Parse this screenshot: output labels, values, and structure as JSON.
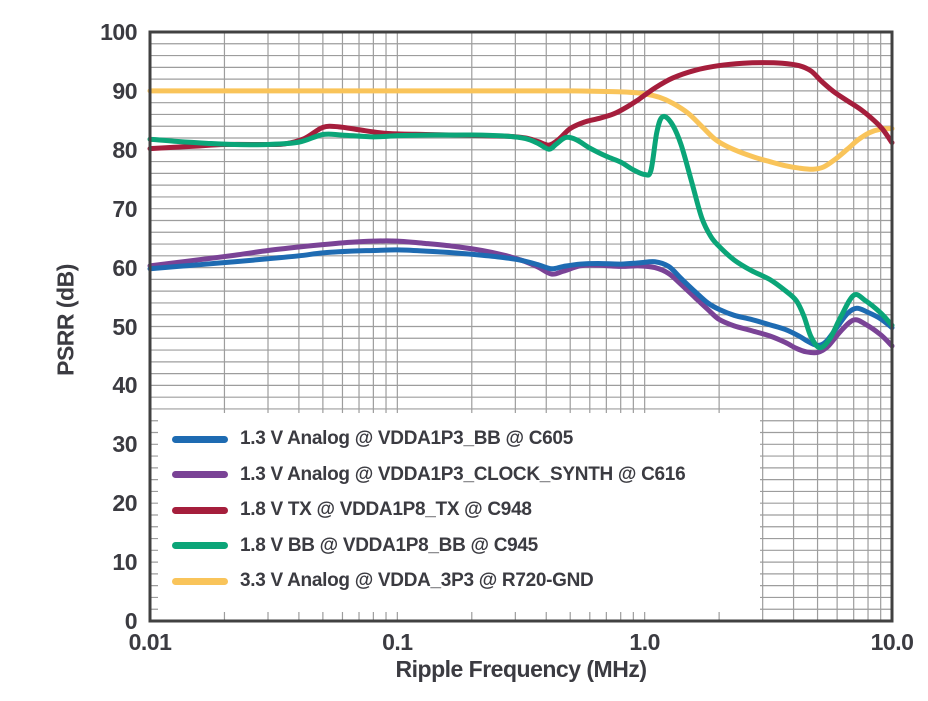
{
  "theme": {
    "text_color": "#3B3B41",
    "grid_color": "#9D9D9D",
    "axis_color": "#414141",
    "background": "#FFFFFF",
    "legend_background": "#FFFFFF"
  },
  "chart_data": {
    "type": "line",
    "title": "",
    "xlabel": "Ripple Frequency (MHz)",
    "ylabel": "PSRR (dB)",
    "x_scale": "log",
    "xlim": [
      0.01,
      10
    ],
    "ylim": [
      0,
      100
    ],
    "grid": "on",
    "y_minor_grid_step": 2,
    "legend_position": "inside bottom-left",
    "x_ticks": {
      "values": [
        0.01,
        0.1,
        1,
        10
      ],
      "labels": [
        "0.01",
        "0.1",
        "1.0",
        "10.0"
      ]
    },
    "y_ticks": {
      "values": [
        0,
        10,
        20,
        30,
        40,
        50,
        60,
        70,
        80,
        90,
        100
      ],
      "labels": [
        "0",
        "10",
        "20",
        "30",
        "40",
        "50",
        "60",
        "70",
        "80",
        "90",
        "100"
      ]
    },
    "series": [
      {
        "name": "1.3 V Analog @ VDDA1P3_BB @ C605",
        "color": "#1E6BB2",
        "points": [
          [
            0.01,
            59.8
          ],
          [
            0.013,
            60.2
          ],
          [
            0.017,
            60.6
          ],
          [
            0.022,
            61.0
          ],
          [
            0.03,
            61.5
          ],
          [
            0.04,
            62.0
          ],
          [
            0.05,
            62.5
          ],
          [
            0.065,
            62.8
          ],
          [
            0.08,
            62.9
          ],
          [
            0.1,
            63.0
          ],
          [
            0.13,
            62.8
          ],
          [
            0.17,
            62.5
          ],
          [
            0.22,
            62.1
          ],
          [
            0.27,
            61.7
          ],
          [
            0.32,
            61.2
          ],
          [
            0.37,
            60.5
          ],
          [
            0.42,
            59.8
          ],
          [
            0.47,
            60.2
          ],
          [
            0.55,
            60.6
          ],
          [
            0.65,
            60.7
          ],
          [
            0.8,
            60.6
          ],
          [
            0.95,
            60.8
          ],
          [
            1.1,
            61.0
          ],
          [
            1.25,
            60.2
          ],
          [
            1.4,
            58.2
          ],
          [
            1.6,
            55.9
          ],
          [
            1.8,
            54.0
          ],
          [
            2.0,
            52.9
          ],
          [
            2.3,
            51.9
          ],
          [
            2.7,
            51.2
          ],
          [
            3.2,
            50.3
          ],
          [
            3.7,
            49.5
          ],
          [
            4.2,
            48.4
          ],
          [
            4.6,
            47.4
          ],
          [
            5.0,
            46.8
          ],
          [
            5.4,
            47.4
          ],
          [
            6.0,
            49.9
          ],
          [
            6.6,
            52.2
          ],
          [
            7.2,
            53.1
          ],
          [
            8.0,
            52.4
          ],
          [
            9.0,
            51.3
          ],
          [
            10.0,
            49.8
          ]
        ]
      },
      {
        "name": "1.3 V Analog @ VDDA1P3_CLOCK_SYNTH @ C616",
        "color": "#7A4396",
        "points": [
          [
            0.01,
            60.3
          ],
          [
            0.013,
            60.9
          ],
          [
            0.017,
            61.5
          ],
          [
            0.022,
            62.1
          ],
          [
            0.03,
            62.9
          ],
          [
            0.04,
            63.5
          ],
          [
            0.05,
            63.9
          ],
          [
            0.065,
            64.3
          ],
          [
            0.08,
            64.5
          ],
          [
            0.1,
            64.5
          ],
          [
            0.13,
            64.1
          ],
          [
            0.17,
            63.6
          ],
          [
            0.22,
            62.9
          ],
          [
            0.27,
            62.1
          ],
          [
            0.32,
            61.2
          ],
          [
            0.37,
            60.1
          ],
          [
            0.42,
            58.9
          ],
          [
            0.47,
            59.4
          ],
          [
            0.55,
            60.3
          ],
          [
            0.65,
            60.4
          ],
          [
            0.8,
            60.2
          ],
          [
            0.95,
            60.3
          ],
          [
            1.1,
            60.0
          ],
          [
            1.25,
            59.0
          ],
          [
            1.4,
            57.2
          ],
          [
            1.6,
            54.9
          ],
          [
            1.8,
            52.9
          ],
          [
            2.0,
            51.2
          ],
          [
            2.3,
            50.1
          ],
          [
            2.7,
            49.3
          ],
          [
            3.2,
            48.4
          ],
          [
            3.7,
            47.3
          ],
          [
            4.1,
            46.3
          ],
          [
            4.5,
            45.7
          ],
          [
            5.0,
            45.6
          ],
          [
            5.5,
            46.6
          ],
          [
            6.2,
            49.2
          ],
          [
            7.0,
            51.1
          ],
          [
            7.8,
            50.4
          ],
          [
            9.0,
            48.6
          ],
          [
            10.0,
            46.7
          ]
        ]
      },
      {
        "name": "1.8 V TX @ VDDA1P8_TX @ C948",
        "color": "#A51E3C",
        "points": [
          [
            0.01,
            80.2
          ],
          [
            0.015,
            80.6
          ],
          [
            0.02,
            80.9
          ],
          [
            0.03,
            80.9
          ],
          [
            0.035,
            81.0
          ],
          [
            0.042,
            81.9
          ],
          [
            0.05,
            83.8
          ],
          [
            0.058,
            83.9
          ],
          [
            0.07,
            83.4
          ],
          [
            0.085,
            82.9
          ],
          [
            0.1,
            82.7
          ],
          [
            0.13,
            82.6
          ],
          [
            0.17,
            82.5
          ],
          [
            0.22,
            82.4
          ],
          [
            0.28,
            82.3
          ],
          [
            0.33,
            82.0
          ],
          [
            0.37,
            81.4
          ],
          [
            0.41,
            80.8
          ],
          [
            0.45,
            81.8
          ],
          [
            0.5,
            83.6
          ],
          [
            0.57,
            84.7
          ],
          [
            0.65,
            85.3
          ],
          [
            0.75,
            86.1
          ],
          [
            0.85,
            87.3
          ],
          [
            0.95,
            88.6
          ],
          [
            1.1,
            90.5
          ],
          [
            1.3,
            92.2
          ],
          [
            1.6,
            93.5
          ],
          [
            2.0,
            94.3
          ],
          [
            2.5,
            94.7
          ],
          [
            3.0,
            94.8
          ],
          [
            3.6,
            94.7
          ],
          [
            4.2,
            94.3
          ],
          [
            4.7,
            93.4
          ],
          [
            5.2,
            91.6
          ],
          [
            5.8,
            89.9
          ],
          [
            6.5,
            88.5
          ],
          [
            7.5,
            86.8
          ],
          [
            8.5,
            84.9
          ],
          [
            9.2,
            83.4
          ],
          [
            10.0,
            81.2
          ]
        ]
      },
      {
        "name": "1.8 V BB @ VDDA1P8_BB @ C945",
        "color": "#0BA578",
        "points": [
          [
            0.01,
            81.8
          ],
          [
            0.013,
            81.4
          ],
          [
            0.017,
            81.1
          ],
          [
            0.022,
            80.9
          ],
          [
            0.03,
            80.9
          ],
          [
            0.04,
            81.3
          ],
          [
            0.05,
            82.6
          ],
          [
            0.06,
            82.5
          ],
          [
            0.08,
            82.2
          ],
          [
            0.1,
            82.4
          ],
          [
            0.13,
            82.5
          ],
          [
            0.17,
            82.5
          ],
          [
            0.22,
            82.5
          ],
          [
            0.28,
            82.3
          ],
          [
            0.33,
            81.9
          ],
          [
            0.37,
            81.1
          ],
          [
            0.41,
            80.1
          ],
          [
            0.44,
            81.0
          ],
          [
            0.48,
            82.1
          ],
          [
            0.53,
            81.7
          ],
          [
            0.6,
            80.3
          ],
          [
            0.7,
            78.9
          ],
          [
            0.8,
            77.9
          ],
          [
            0.9,
            76.6
          ],
          [
            1.0,
            75.8
          ],
          [
            1.06,
            76.5
          ],
          [
            1.12,
            83.0
          ],
          [
            1.18,
            85.6
          ],
          [
            1.28,
            84.6
          ],
          [
            1.4,
            81.0
          ],
          [
            1.55,
            74.5
          ],
          [
            1.7,
            68.5
          ],
          [
            1.85,
            65.3
          ],
          [
            2.0,
            63.6
          ],
          [
            2.3,
            61.3
          ],
          [
            2.7,
            59.5
          ],
          [
            3.2,
            58.0
          ],
          [
            3.7,
            56.1
          ],
          [
            4.1,
            54.4
          ],
          [
            4.4,
            51.8
          ],
          [
            4.7,
            48.3
          ],
          [
            5.1,
            46.4
          ],
          [
            5.6,
            47.9
          ],
          [
            6.2,
            51.6
          ],
          [
            7.0,
            55.3
          ],
          [
            7.8,
            54.4
          ],
          [
            9.0,
            52.3
          ],
          [
            10.0,
            50.2
          ]
        ]
      },
      {
        "name": "3.3 V Analog @ VDDA_3P3 @ R720-GND",
        "color": "#F9C45A",
        "points": [
          [
            0.01,
            90.0
          ],
          [
            0.05,
            90.0
          ],
          [
            0.1,
            90.0
          ],
          [
            0.2,
            90.0
          ],
          [
            0.35,
            90.0
          ],
          [
            0.5,
            90.0
          ],
          [
            0.7,
            89.9
          ],
          [
            0.85,
            89.8
          ],
          [
            1.0,
            89.5
          ],
          [
            1.15,
            88.9
          ],
          [
            1.3,
            87.9
          ],
          [
            1.5,
            86.2
          ],
          [
            1.7,
            84.0
          ],
          [
            1.9,
            82.0
          ],
          [
            2.1,
            80.8
          ],
          [
            2.4,
            79.7
          ],
          [
            2.8,
            78.7
          ],
          [
            3.2,
            78.0
          ],
          [
            3.7,
            77.3
          ],
          [
            4.2,
            76.9
          ],
          [
            4.8,
            76.7
          ],
          [
            5.3,
            77.1
          ],
          [
            5.9,
            78.4
          ],
          [
            6.6,
            80.1
          ],
          [
            7.3,
            81.7
          ],
          [
            8.1,
            82.9
          ],
          [
            9.0,
            83.5
          ],
          [
            10.0,
            83.6
          ]
        ]
      }
    ]
  }
}
